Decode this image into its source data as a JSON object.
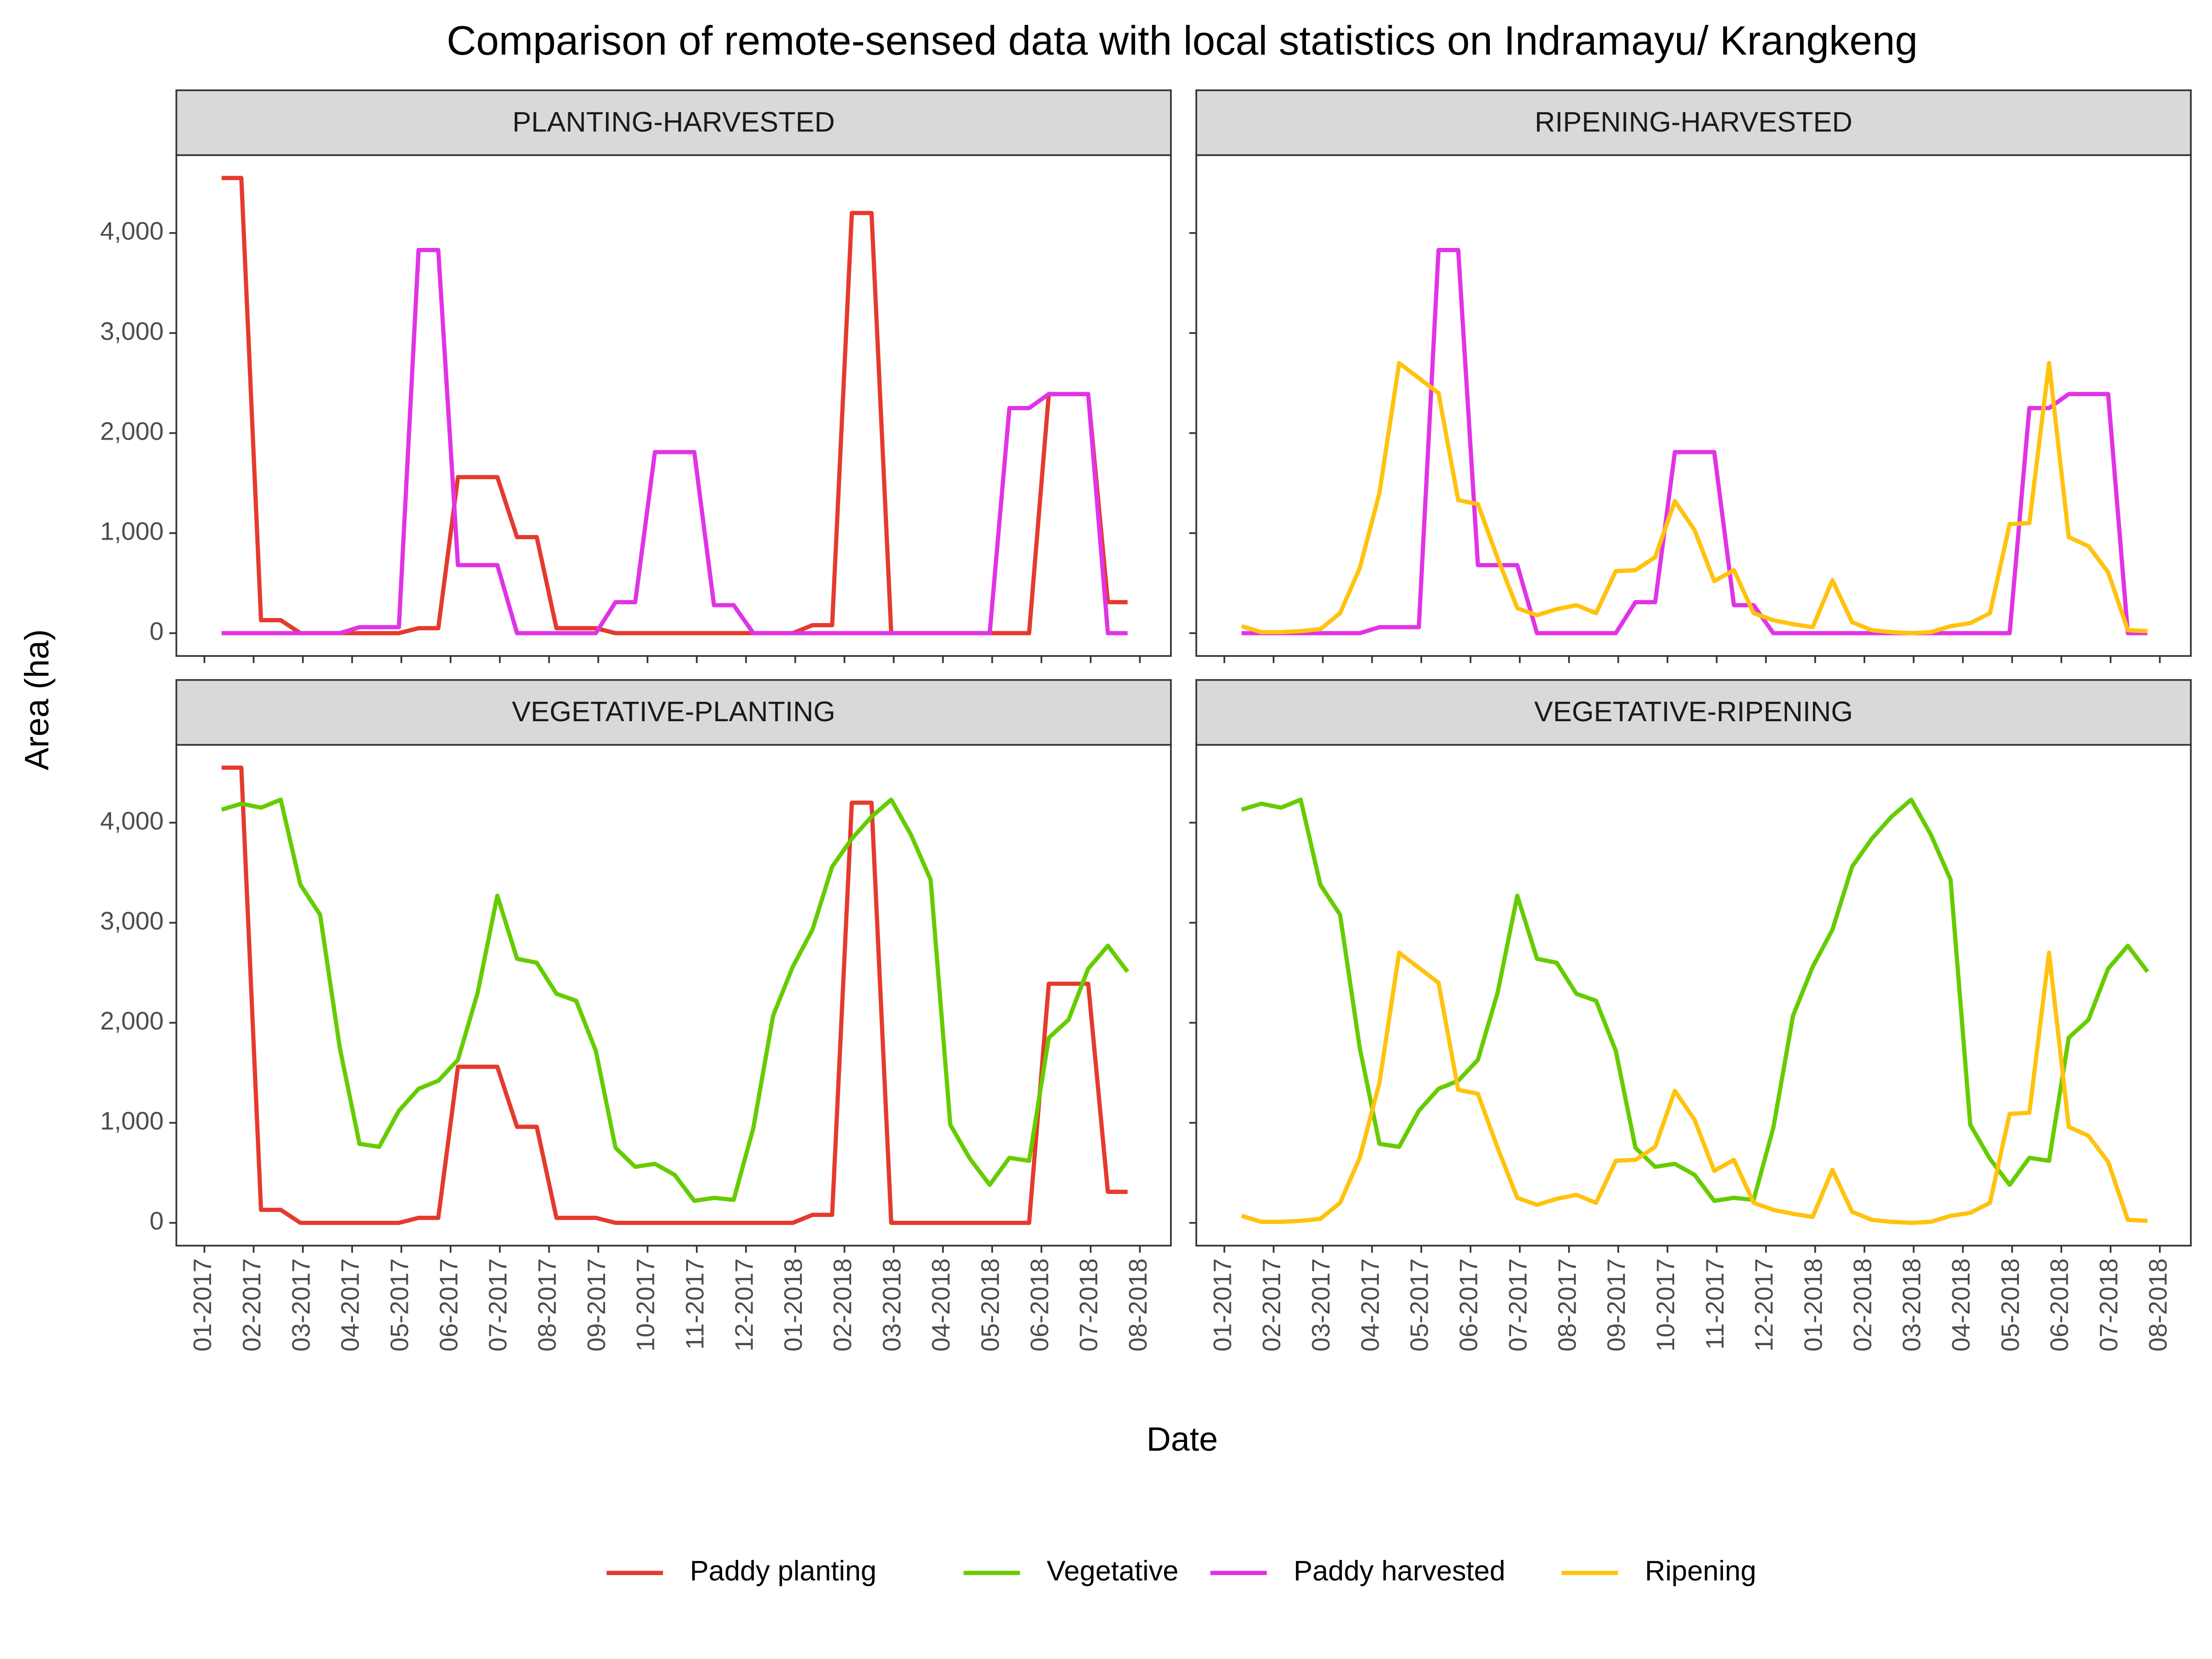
{
  "title": "Comparison of remote-sensed data with local statistics on Indramayu/ Krangkeng",
  "xlabel": "Date",
  "ylabel": "Area (ha)",
  "chart_data": [
    {
      "type": "line",
      "title": "PLANTING-HARVESTED",
      "x": [
        0.35,
        0.75,
        1.15,
        1.55,
        1.95,
        2.35,
        2.75,
        3.15,
        3.55,
        3.95,
        4.35,
        4.75,
        5.15,
        5.55,
        5.95,
        6.35,
        6.75,
        7.15,
        7.55,
        7.95,
        8.35,
        8.75,
        9.15,
        9.55,
        9.95,
        10.35,
        10.75,
        11.15,
        11.55,
        11.95,
        12.35,
        12.75,
        13.15,
        13.55,
        13.95,
        14.35,
        14.75,
        15.15,
        15.55,
        15.95,
        16.35,
        16.75,
        17.15,
        17.55,
        17.95,
        18.35,
        18.75
      ],
      "xlim": [
        -0.57,
        19.63
      ],
      "xticks": [
        {
          "value": 0,
          "label": "01-2017"
        },
        {
          "value": 1,
          "label": "02-2017"
        },
        {
          "value": 2,
          "label": "03-2017"
        },
        {
          "value": 3,
          "label": "04-2017"
        },
        {
          "value": 4,
          "label": "05-2017"
        },
        {
          "value": 5,
          "label": "06-2017"
        },
        {
          "value": 6,
          "label": "07-2017"
        },
        {
          "value": 7,
          "label": "08-2017"
        },
        {
          "value": 8,
          "label": "09-2017"
        },
        {
          "value": 9,
          "label": "10-2017"
        },
        {
          "value": 10,
          "label": "11-2017"
        },
        {
          "value": 11,
          "label": "12-2017"
        },
        {
          "value": 12,
          "label": "01-2018"
        },
        {
          "value": 13,
          "label": "02-2018"
        },
        {
          "value": 14,
          "label": "03-2018"
        },
        {
          "value": 15,
          "label": "04-2018"
        },
        {
          "value": 16,
          "label": "05-2018"
        },
        {
          "value": 17,
          "label": "06-2018"
        },
        {
          "value": 18,
          "label": "07-2018"
        },
        {
          "value": 19,
          "label": "08-2018"
        }
      ],
      "ylim": [
        -228,
        4778
      ],
      "yticks": [
        0,
        {
          "value": 1000,
          "label": "1,000"
        },
        {
          "value": 2000,
          "label": "2,000"
        },
        {
          "value": 3000,
          "label": "3,000"
        },
        {
          "value": 4000,
          "label": "4,000"
        }
      ],
      "grid": false,
      "series": [
        {
          "name": "Paddy planting",
          "color": "#e53a2d",
          "values": [
            4550,
            4550,
            130,
            130,
            0,
            0,
            0,
            0,
            0,
            0,
            50,
            50,
            1560,
            1560,
            1560,
            960,
            960,
            50,
            50,
            50,
            0,
            0,
            0,
            0,
            0,
            0,
            0,
            0,
            0,
            0,
            80,
            80,
            4200,
            4200,
            0,
            0,
            0,
            0,
            0,
            0,
            0,
            0,
            2390,
            2390,
            2390,
            310,
            310
          ]
        },
        {
          "name": "Paddy harvested",
          "color": "#e033e6",
          "values": [
            0,
            0,
            0,
            0,
            0,
            0,
            0,
            60,
            60,
            60,
            3830,
            3830,
            680,
            680,
            680,
            0,
            0,
            0,
            0,
            0,
            310,
            310,
            1810,
            1810,
            1810,
            280,
            280,
            0,
            0,
            0,
            0,
            0,
            0,
            0,
            0,
            0,
            0,
            0,
            0,
            0,
            2250,
            2250,
            2390,
            2390,
            2390,
            0,
            0
          ]
        }
      ]
    },
    {
      "type": "line",
      "title": "RIPENING-HARVESTED",
      "x": [
        0.35,
        0.75,
        1.15,
        1.55,
        1.95,
        2.35,
        2.75,
        3.15,
        3.55,
        3.95,
        4.35,
        4.75,
        5.15,
        5.55,
        5.95,
        6.35,
        6.75,
        7.15,
        7.55,
        7.95,
        8.35,
        8.75,
        9.15,
        9.55,
        9.95,
        10.35,
        10.75,
        11.15,
        11.55,
        11.95,
        12.35,
        12.75,
        13.15,
        13.55,
        13.95,
        14.35,
        14.75,
        15.15,
        15.55,
        15.95,
        16.35,
        16.75,
        17.15,
        17.55,
        17.95,
        18.35,
        18.75
      ],
      "xlim": [
        -0.57,
        19.63
      ],
      "xticks": [
        {
          "value": 0,
          "label": "01-2017"
        },
        {
          "value": 1,
          "label": "02-2017"
        },
        {
          "value": 2,
          "label": "03-2017"
        },
        {
          "value": 3,
          "label": "04-2017"
        },
        {
          "value": 4,
          "label": "05-2017"
        },
        {
          "value": 5,
          "label": "06-2017"
        },
        {
          "value": 6,
          "label": "07-2017"
        },
        {
          "value": 7,
          "label": "08-2017"
        },
        {
          "value": 8,
          "label": "09-2017"
        },
        {
          "value": 9,
          "label": "10-2017"
        },
        {
          "value": 10,
          "label": "11-2017"
        },
        {
          "value": 11,
          "label": "12-2017"
        },
        {
          "value": 12,
          "label": "01-2018"
        },
        {
          "value": 13,
          "label": "02-2018"
        },
        {
          "value": 14,
          "label": "03-2018"
        },
        {
          "value": 15,
          "label": "04-2018"
        },
        {
          "value": 16,
          "label": "05-2018"
        },
        {
          "value": 17,
          "label": "06-2018"
        },
        {
          "value": 18,
          "label": "07-2018"
        },
        {
          "value": 19,
          "label": "08-2018"
        }
      ],
      "ylim": [
        -228,
        4778
      ],
      "yticks": [
        0,
        {
          "value": 1000,
          "label": "1,000"
        },
        {
          "value": 2000,
          "label": "2,000"
        },
        {
          "value": 3000,
          "label": "3,000"
        },
        {
          "value": 4000,
          "label": "4,000"
        }
      ],
      "grid": false,
      "series": [
        {
          "name": "Paddy harvested",
          "color": "#e033e6",
          "values": [
            0,
            0,
            0,
            0,
            0,
            0,
            0,
            60,
            60,
            60,
            3830,
            3830,
            680,
            680,
            680,
            0,
            0,
            0,
            0,
            0,
            310,
            310,
            1810,
            1810,
            1810,
            280,
            280,
            0,
            0,
            0,
            0,
            0,
            0,
            0,
            0,
            0,
            0,
            0,
            0,
            0,
            2250,
            2250,
            2390,
            2390,
            2390,
            0,
            0
          ]
        },
        {
          "name": "Ripening",
          "color": "#ffc20e",
          "values": [
            70,
            10,
            10,
            20,
            40,
            200,
            650,
            1400,
            2700,
            2550,
            2400,
            1330,
            1290,
            750,
            250,
            180,
            240,
            280,
            200,
            620,
            630,
            760,
            1320,
            1030,
            520,
            630,
            200,
            130,
            90,
            60,
            530,
            110,
            30,
            10,
            0,
            10,
            70,
            100,
            200,
            1090,
            1100,
            2700,
            960,
            870,
            610,
            30,
            20
          ]
        }
      ]
    },
    {
      "type": "line",
      "title": "VEGETATIVE-PLANTING",
      "x": [
        0.35,
        0.75,
        1.15,
        1.55,
        1.95,
        2.35,
        2.75,
        3.15,
        3.55,
        3.95,
        4.35,
        4.75,
        5.15,
        5.55,
        5.95,
        6.35,
        6.75,
        7.15,
        7.55,
        7.95,
        8.35,
        8.75,
        9.15,
        9.55,
        9.95,
        10.35,
        10.75,
        11.15,
        11.55,
        11.95,
        12.35,
        12.75,
        13.15,
        13.55,
        13.95,
        14.35,
        14.75,
        15.15,
        15.55,
        15.95,
        16.35,
        16.75,
        17.15,
        17.55,
        17.95,
        18.35,
        18.75
      ],
      "xlim": [
        -0.57,
        19.63
      ],
      "xticks": [
        {
          "value": 0,
          "label": "01-2017"
        },
        {
          "value": 1,
          "label": "02-2017"
        },
        {
          "value": 2,
          "label": "03-2017"
        },
        {
          "value": 3,
          "label": "04-2017"
        },
        {
          "value": 4,
          "label": "05-2017"
        },
        {
          "value": 5,
          "label": "06-2017"
        },
        {
          "value": 6,
          "label": "07-2017"
        },
        {
          "value": 7,
          "label": "08-2017"
        },
        {
          "value": 8,
          "label": "09-2017"
        },
        {
          "value": 9,
          "label": "10-2017"
        },
        {
          "value": 10,
          "label": "11-2017"
        },
        {
          "value": 11,
          "label": "12-2017"
        },
        {
          "value": 12,
          "label": "01-2018"
        },
        {
          "value": 13,
          "label": "02-2018"
        },
        {
          "value": 14,
          "label": "03-2018"
        },
        {
          "value": 15,
          "label": "04-2018"
        },
        {
          "value": 16,
          "label": "05-2018"
        },
        {
          "value": 17,
          "label": "06-2018"
        },
        {
          "value": 18,
          "label": "07-2018"
        },
        {
          "value": 19,
          "label": "08-2018"
        }
      ],
      "ylim": [
        -228,
        4778
      ],
      "yticks": [
        0,
        {
          "value": 1000,
          "label": "1,000"
        },
        {
          "value": 2000,
          "label": "2,000"
        },
        {
          "value": 3000,
          "label": "3,000"
        },
        {
          "value": 4000,
          "label": "4,000"
        }
      ],
      "grid": false,
      "series": [
        {
          "name": "Paddy planting",
          "color": "#e53a2d",
          "values": [
            4550,
            4550,
            130,
            130,
            0,
            0,
            0,
            0,
            0,
            0,
            50,
            50,
            1560,
            1560,
            1560,
            960,
            960,
            50,
            50,
            50,
            0,
            0,
            0,
            0,
            0,
            0,
            0,
            0,
            0,
            0,
            80,
            80,
            4200,
            4200,
            0,
            0,
            0,
            0,
            0,
            0,
            0,
            0,
            2390,
            2390,
            2390,
            310,
            310
          ]
        },
        {
          "name": "Vegetative",
          "color": "#66cc00",
          "values": [
            4130,
            4190,
            4150,
            4230,
            3380,
            3080,
            1750,
            790,
            760,
            1120,
            1340,
            1420,
            1630,
            2300,
            3270,
            2640,
            2600,
            2290,
            2220,
            1720,
            750,
            560,
            590,
            480,
            220,
            250,
            230,
            950,
            2070,
            2560,
            2930,
            3560,
            3840,
            4060,
            4230,
            3880,
            3430,
            980,
            640,
            380,
            650,
            620,
            1850,
            2030,
            2540,
            2770,
            2510
          ]
        }
      ]
    },
    {
      "type": "line",
      "title": "VEGETATIVE-RIPENING",
      "x": [
        0.35,
        0.75,
        1.15,
        1.55,
        1.95,
        2.35,
        2.75,
        3.15,
        3.55,
        3.95,
        4.35,
        4.75,
        5.15,
        5.55,
        5.95,
        6.35,
        6.75,
        7.15,
        7.55,
        7.95,
        8.35,
        8.75,
        9.15,
        9.55,
        9.95,
        10.35,
        10.75,
        11.15,
        11.55,
        11.95,
        12.35,
        12.75,
        13.15,
        13.55,
        13.95,
        14.35,
        14.75,
        15.15,
        15.55,
        15.95,
        16.35,
        16.75,
        17.15,
        17.55,
        17.95,
        18.35,
        18.75
      ],
      "xlim": [
        -0.57,
        19.63
      ],
      "xticks": [
        {
          "value": 0,
          "label": "01-2017"
        },
        {
          "value": 1,
          "label": "02-2017"
        },
        {
          "value": 2,
          "label": "03-2017"
        },
        {
          "value": 3,
          "label": "04-2017"
        },
        {
          "value": 4,
          "label": "05-2017"
        },
        {
          "value": 5,
          "label": "06-2017"
        },
        {
          "value": 6,
          "label": "07-2017"
        },
        {
          "value": 7,
          "label": "08-2017"
        },
        {
          "value": 8,
          "label": "09-2017"
        },
        {
          "value": 9,
          "label": "10-2017"
        },
        {
          "value": 10,
          "label": "11-2017"
        },
        {
          "value": 11,
          "label": "12-2017"
        },
        {
          "value": 12,
          "label": "01-2018"
        },
        {
          "value": 13,
          "label": "02-2018"
        },
        {
          "value": 14,
          "label": "03-2018"
        },
        {
          "value": 15,
          "label": "04-2018"
        },
        {
          "value": 16,
          "label": "05-2018"
        },
        {
          "value": 17,
          "label": "06-2018"
        },
        {
          "value": 18,
          "label": "07-2018"
        },
        {
          "value": 19,
          "label": "08-2018"
        }
      ],
      "ylim": [
        -228,
        4778
      ],
      "yticks": [
        0,
        {
          "value": 1000,
          "label": "1,000"
        },
        {
          "value": 2000,
          "label": "2,000"
        },
        {
          "value": 3000,
          "label": "3,000"
        },
        {
          "value": 4000,
          "label": "4,000"
        }
      ],
      "grid": false,
      "series": [
        {
          "name": "Vegetative",
          "color": "#66cc00",
          "values": [
            4130,
            4190,
            4150,
            4230,
            3380,
            3080,
            1750,
            790,
            760,
            1120,
            1340,
            1420,
            1630,
            2300,
            3270,
            2640,
            2600,
            2290,
            2220,
            1720,
            750,
            560,
            590,
            480,
            220,
            250,
            230,
            950,
            2070,
            2560,
            2930,
            3560,
            3840,
            4060,
            4230,
            3880,
            3430,
            980,
            640,
            380,
            650,
            620,
            1850,
            2030,
            2540,
            2770,
            2510
          ]
        },
        {
          "name": "Ripening",
          "color": "#ffc20e",
          "values": [
            70,
            10,
            10,
            20,
            40,
            200,
            650,
            1400,
            2700,
            2550,
            2400,
            1330,
            1290,
            750,
            250,
            180,
            240,
            280,
            200,
            620,
            630,
            760,
            1320,
            1030,
            520,
            630,
            200,
            130,
            90,
            60,
            530,
            110,
            30,
            10,
            0,
            10,
            70,
            100,
            200,
            1090,
            1100,
            2700,
            960,
            870,
            610,
            30,
            20
          ]
        }
      ]
    }
  ]
}
